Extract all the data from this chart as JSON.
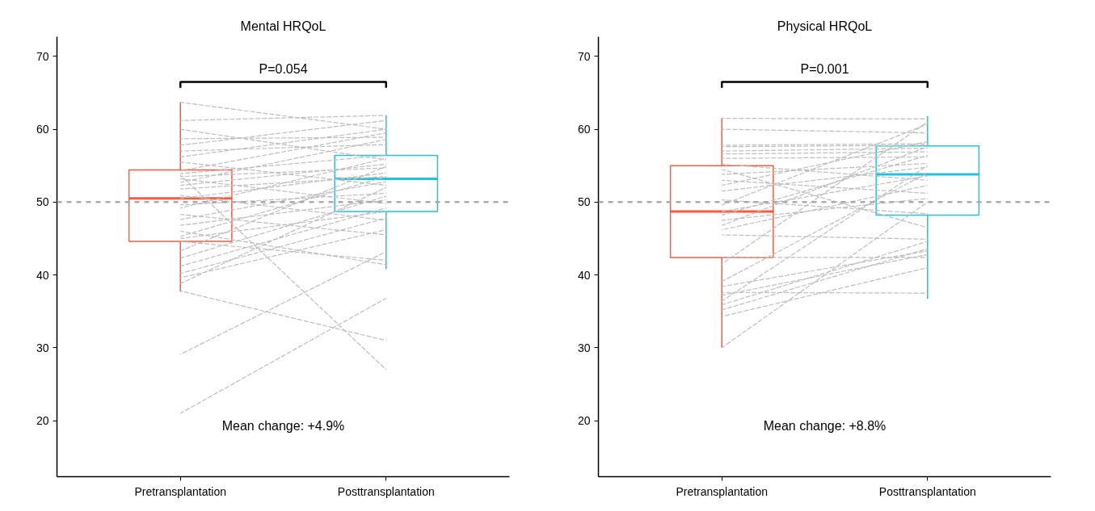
{
  "chart_data": [
    {
      "type": "box",
      "title": "Mental HRQoL",
      "categories": [
        "Pretransplantation",
        "Posttransplantation"
      ],
      "boxes": [
        {
          "low": 37.7,
          "q1": 44.6,
          "median": 50.5,
          "q3": 54.4,
          "high": 63.7
        },
        {
          "low": 40.8,
          "q1": 48.7,
          "median": 53.2,
          "q3": 56.4,
          "high": 61.9
        }
      ],
      "colors": [
        "#fb5a3f",
        "#1fc3dc"
      ],
      "ylim": [
        12.3,
        72.7
      ],
      "yticks": [
        20,
        30,
        40,
        50,
        60,
        70
      ],
      "line_style": "dashed",
      "ref_lines": [
        {
          "axis": "y",
          "value": 50,
          "color": "#aaaaaa",
          "line_style": "dashed"
        }
      ],
      "annotations": [
        "P=0.054",
        "Mean change: +4.9%"
      ],
      "series": [
        {
          "type": "line",
          "color": "#bebebe",
          "values": [
            63.7,
            60.0
          ]
        },
        {
          "type": "line",
          "color": "#bebebe",
          "values": [
            61.2,
            61.9
          ]
        },
        {
          "type": "line",
          "color": "#bebebe",
          "values": [
            60.0,
            55.8
          ]
        },
        {
          "type": "line",
          "color": "#bebebe",
          "values": [
            58.7,
            58.9
          ]
        },
        {
          "type": "line",
          "color": "#bebebe",
          "values": [
            57.8,
            61.2
          ]
        },
        {
          "type": "line",
          "color": "#bebebe",
          "values": [
            57.0,
            57.9
          ]
        },
        {
          "type": "line",
          "color": "#bebebe",
          "values": [
            56.2,
            60.0
          ]
        },
        {
          "type": "line",
          "color": "#bebebe",
          "values": [
            55.5,
            52.3
          ]
        },
        {
          "type": "line",
          "color": "#bebebe",
          "values": [
            54.3,
            59.5
          ]
        },
        {
          "type": "line",
          "color": "#bebebe",
          "values": [
            53.9,
            56.4
          ]
        },
        {
          "type": "line",
          "color": "#bebebe",
          "values": [
            53.7,
            27.0
          ]
        },
        {
          "type": "line",
          "color": "#bebebe",
          "values": [
            53.5,
            54.7
          ]
        },
        {
          "type": "line",
          "color": "#bebebe",
          "values": [
            53.2,
            49.8
          ]
        },
        {
          "type": "line",
          "color": "#bebebe",
          "values": [
            52.7,
            58.6
          ]
        },
        {
          "type": "line",
          "color": "#bebebe",
          "values": [
            52.3,
            55.2
          ]
        },
        {
          "type": "line",
          "color": "#bebebe",
          "values": [
            51.8,
            53.5
          ]
        },
        {
          "type": "line",
          "color": "#bebebe",
          "values": [
            50.9,
            47.5
          ]
        },
        {
          "type": "line",
          "color": "#bebebe",
          "values": [
            50.5,
            54.0
          ]
        },
        {
          "type": "line",
          "color": "#bebebe",
          "values": [
            49.6,
            51.2
          ]
        },
        {
          "type": "line",
          "color": "#bebebe",
          "values": [
            49.2,
            56.0
          ]
        },
        {
          "type": "line",
          "color": "#bebebe",
          "values": [
            48.3,
            45.5
          ]
        },
        {
          "type": "line",
          "color": "#bebebe",
          "values": [
            47.6,
            52.8
          ]
        },
        {
          "type": "line",
          "color": "#bebebe",
          "values": [
            46.8,
            50.3
          ]
        },
        {
          "type": "line",
          "color": "#bebebe",
          "values": [
            46.0,
            41.4
          ]
        },
        {
          "type": "line",
          "color": "#bebebe",
          "values": [
            45.3,
            53.5
          ]
        },
        {
          "type": "line",
          "color": "#bebebe",
          "values": [
            45.0,
            48.7
          ]
        },
        {
          "type": "line",
          "color": "#bebebe",
          "values": [
            44.6,
            42.0
          ]
        },
        {
          "type": "line",
          "color": "#bebebe",
          "values": [
            43.3,
            54.9
          ]
        },
        {
          "type": "line",
          "color": "#bebebe",
          "values": [
            42.3,
            50.8
          ]
        },
        {
          "type": "line",
          "color": "#bebebe",
          "values": [
            41.2,
            49.2
          ]
        },
        {
          "type": "line",
          "color": "#bebebe",
          "values": [
            40.2,
            47.8
          ]
        },
        {
          "type": "line",
          "color": "#bebebe",
          "values": [
            39.6,
            46.2
          ]
        },
        {
          "type": "line",
          "color": "#bebebe",
          "values": [
            38.8,
            52.0
          ]
        },
        {
          "type": "line",
          "color": "#bebebe",
          "values": [
            37.8,
            31.0
          ]
        },
        {
          "type": "line",
          "color": "#bebebe",
          "values": [
            29.1,
            43.2
          ]
        },
        {
          "type": "line",
          "color": "#bebebe",
          "values": [
            21.0,
            36.8
          ]
        }
      ]
    },
    {
      "type": "box",
      "title": "Physical HRQoL",
      "categories": [
        "Pretransplantation",
        "Posttransplantation"
      ],
      "boxes": [
        {
          "low": 30.0,
          "q1": 42.4,
          "median": 48.7,
          "q3": 55.0,
          "high": 61.5
        },
        {
          "low": 36.7,
          "q1": 48.2,
          "median": 53.8,
          "q3": 57.7,
          "high": 61.8
        }
      ],
      "colors": [
        "#fb5a3f",
        "#1fc3dc"
      ],
      "ylim": [
        12.3,
        72.7
      ],
      "yticks": [
        20,
        30,
        40,
        50,
        60,
        70
      ],
      "line_style": "dashed",
      "ref_lines": [
        {
          "axis": "y",
          "value": 50,
          "color": "#aaaaaa",
          "line_style": "dashed"
        }
      ],
      "annotations": [
        "P=0.001",
        "Mean change: +8.8%"
      ],
      "series": [
        {
          "type": "line",
          "color": "#bebebe",
          "values": [
            61.5,
            61.4
          ]
        },
        {
          "type": "line",
          "color": "#bebebe",
          "values": [
            60.0,
            59.5
          ]
        },
        {
          "type": "line",
          "color": "#bebebe",
          "values": [
            57.8,
            58.0
          ]
        },
        {
          "type": "line",
          "color": "#bebebe",
          "values": [
            57.6,
            57.8
          ]
        },
        {
          "type": "line",
          "color": "#bebebe",
          "values": [
            57.0,
            57.4
          ]
        },
        {
          "type": "line",
          "color": "#bebebe",
          "values": [
            56.6,
            56.9
          ]
        },
        {
          "type": "line",
          "color": "#bebebe",
          "values": [
            56.0,
            56.2
          ]
        },
        {
          "type": "line",
          "color": "#bebebe",
          "values": [
            55.2,
            53.0
          ]
        },
        {
          "type": "line",
          "color": "#bebebe",
          "values": [
            54.5,
            46.5
          ]
        },
        {
          "type": "line",
          "color": "#bebebe",
          "values": [
            53.8,
            55.3
          ]
        },
        {
          "type": "line",
          "color": "#bebebe",
          "values": [
            53.0,
            51.2
          ]
        },
        {
          "type": "line",
          "color": "#bebebe",
          "values": [
            52.3,
            58.3
          ]
        },
        {
          "type": "line",
          "color": "#bebebe",
          "values": [
            51.5,
            54.8
          ]
        },
        {
          "type": "line",
          "color": "#bebebe",
          "values": [
            50.3,
            48.4
          ]
        },
        {
          "type": "line",
          "color": "#bebebe",
          "values": [
            49.6,
            60.7
          ]
        },
        {
          "type": "line",
          "color": "#bebebe",
          "values": [
            48.7,
            53.6
          ]
        },
        {
          "type": "line",
          "color": "#bebebe",
          "values": [
            48.2,
            56.4
          ]
        },
        {
          "type": "line",
          "color": "#bebebe",
          "values": [
            47.5,
            50.5
          ]
        },
        {
          "type": "line",
          "color": "#bebebe",
          "values": [
            46.8,
            57.6
          ]
        },
        {
          "type": "line",
          "color": "#bebebe",
          "values": [
            46.2,
            52.3
          ]
        },
        {
          "type": "line",
          "color": "#bebebe",
          "values": [
            45.5,
            44.9
          ]
        },
        {
          "type": "line",
          "color": "#bebebe",
          "values": [
            42.4,
            42.4
          ]
        },
        {
          "type": "line",
          "color": "#bebebe",
          "values": [
            41.5,
            61.0
          ]
        },
        {
          "type": "line",
          "color": "#bebebe",
          "values": [
            39.1,
            54.0
          ]
        },
        {
          "type": "line",
          "color": "#bebebe",
          "values": [
            38.4,
            43.3
          ]
        },
        {
          "type": "line",
          "color": "#bebebe",
          "values": [
            37.6,
            37.5
          ]
        },
        {
          "type": "line",
          "color": "#bebebe",
          "values": [
            37.2,
            42.8
          ]
        },
        {
          "type": "line",
          "color": "#bebebe",
          "values": [
            36.4,
            55.0
          ]
        },
        {
          "type": "line",
          "color": "#bebebe",
          "values": [
            35.9,
            44.6
          ]
        },
        {
          "type": "line",
          "color": "#bebebe",
          "values": [
            35.2,
            43.6
          ]
        },
        {
          "type": "line",
          "color": "#bebebe",
          "values": [
            34.3,
            41.0
          ]
        },
        {
          "type": "line",
          "color": "#bebebe",
          "values": [
            30.0,
            50.0
          ]
        }
      ]
    }
  ]
}
